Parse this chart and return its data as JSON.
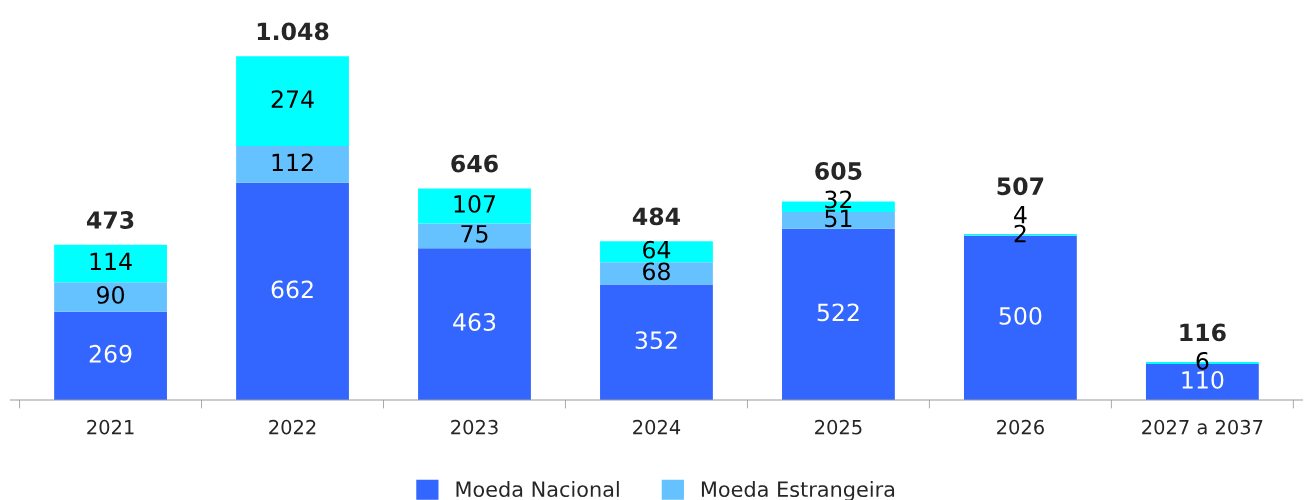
{
  "chart_data": {
    "type": "bar",
    "stacked": true,
    "data_labels": true,
    "legend": "bottom",
    "grid": false,
    "categories": [
      "2021",
      "2022",
      "2023",
      "2024",
      "2025",
      "2026",
      "2027 a 2037"
    ],
    "series": [
      {
        "name": "Moeda Nacional",
        "color": "#3366ff",
        "values": [
          269,
          662,
          463,
          352,
          522,
          500,
          110
        ]
      },
      {
        "name": "Moeda Estrangeira",
        "color": "#66c2ff",
        "values": [
          90,
          112,
          75,
          68,
          51,
          2,
          null
        ]
      },
      {
        "color": "#00ffff",
        "values": [
          114,
          274,
          107,
          64,
          32,
          4,
          6
        ]
      }
    ],
    "totals": [
      "473",
      "1.048",
      "646",
      "484",
      "605",
      "507",
      "116"
    ]
  }
}
